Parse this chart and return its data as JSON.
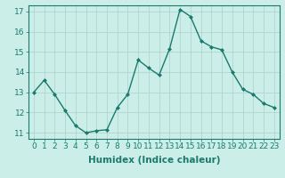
{
  "x": [
    0,
    1,
    2,
    3,
    4,
    5,
    6,
    7,
    8,
    9,
    10,
    11,
    12,
    13,
    14,
    15,
    16,
    17,
    18,
    19,
    20,
    21,
    22,
    23
  ],
  "y": [
    13.0,
    13.6,
    12.9,
    12.1,
    11.35,
    11.0,
    11.1,
    11.15,
    12.25,
    12.9,
    14.6,
    14.2,
    13.85,
    15.15,
    17.1,
    16.75,
    15.55,
    15.25,
    15.1,
    14.0,
    13.15,
    12.9,
    12.45,
    12.25
  ],
  "line_color": "#1a7a6e",
  "marker": "D",
  "marker_size": 2,
  "bg_color": "#cceee8",
  "grid_color": "#b0d4ce",
  "xlabel": "Humidex (Indice chaleur)",
  "ylim": [
    10.7,
    17.3
  ],
  "xlim": [
    -0.5,
    23.5
  ],
  "yticks": [
    11,
    12,
    13,
    14,
    15,
    16,
    17
  ],
  "xticks": [
    0,
    1,
    2,
    3,
    4,
    5,
    6,
    7,
    8,
    9,
    10,
    11,
    12,
    13,
    14,
    15,
    16,
    17,
    18,
    19,
    20,
    21,
    22,
    23
  ],
  "tick_color": "#1a7a6e",
  "label_color": "#1a7a6e",
  "font_size": 6.5,
  "xlabel_fontsize": 7.5,
  "linewidth": 1.0
}
